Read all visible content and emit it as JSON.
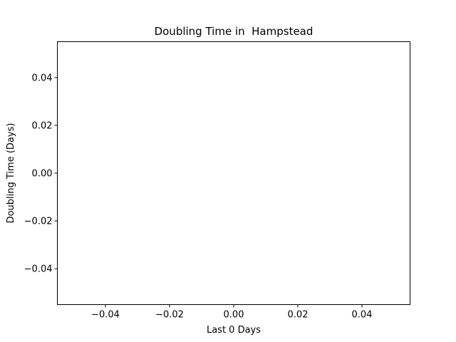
{
  "chart_data": {
    "type": "line",
    "title": "Doubling Time in  Hampstead",
    "xlabel": "Last 0 Days",
    "ylabel": "Doubling Time (Days)",
    "xlim": [
      -0.055,
      0.055
    ],
    "ylim": [
      -0.055,
      0.055
    ],
    "xticks": [
      -0.04,
      -0.02,
      0.0,
      0.02,
      0.04
    ],
    "yticks": [
      -0.04,
      -0.02,
      0.0,
      0.02,
      0.04
    ],
    "xtick_labels": [
      "−0.04",
      "−0.02",
      "0.00",
      "0.02",
      "0.04"
    ],
    "ytick_labels": [
      "−0.04",
      "−0.02",
      "0.00",
      "0.02",
      "0.04"
    ],
    "series": [
      {
        "x": [],
        "y": []
      }
    ],
    "grid": false,
    "legend": "none",
    "colors": {
      "axes": "#000000",
      "background": "#ffffff"
    }
  }
}
